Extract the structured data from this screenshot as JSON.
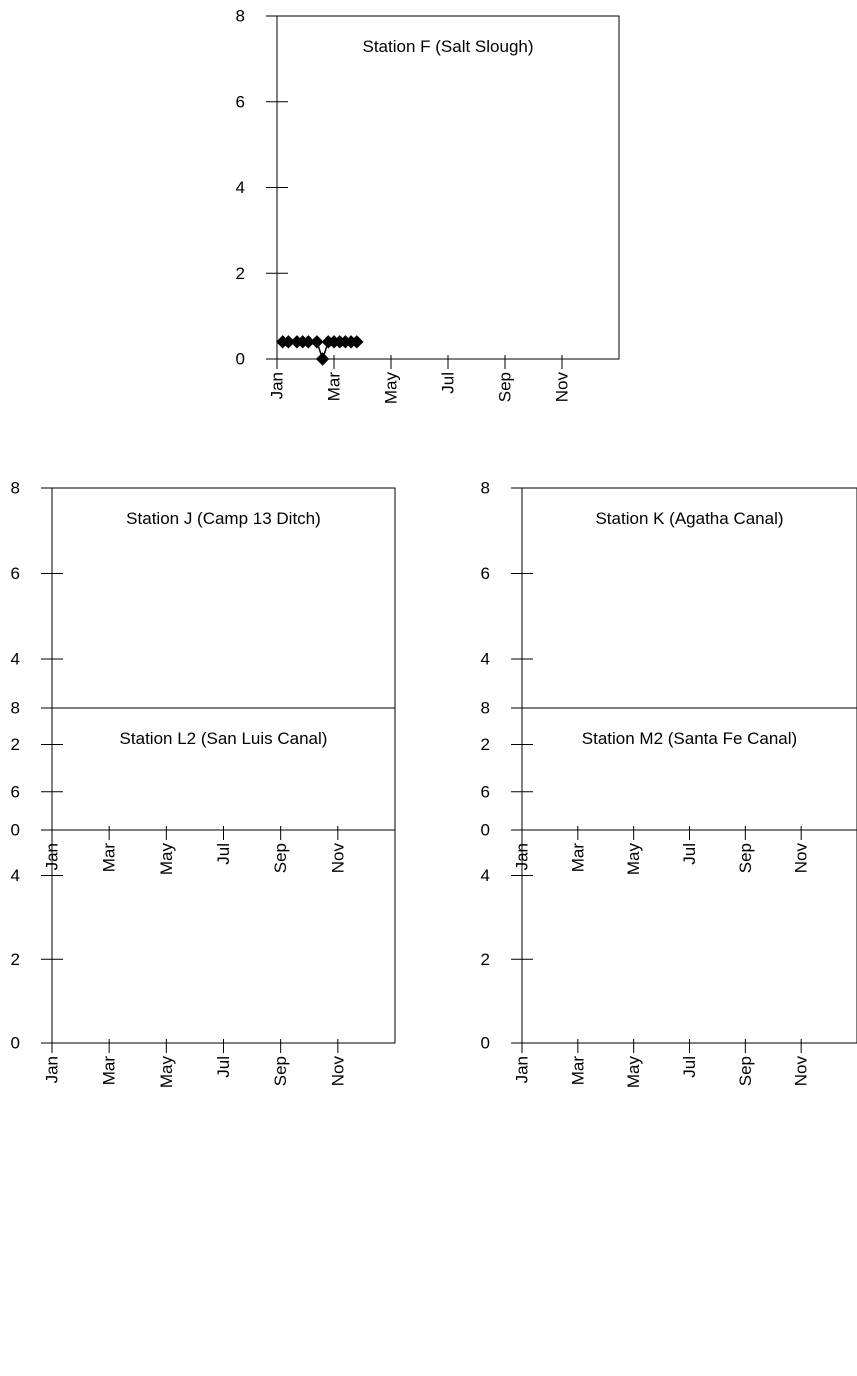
{
  "chart_data": [
    {
      "type": "line",
      "title": "Station F (Salt Slough)",
      "xlabel": "",
      "ylabel": "",
      "ylim": [
        0,
        8
      ],
      "yticks": [
        0,
        2,
        4,
        6,
        8
      ],
      "xlim": [
        1,
        13
      ],
      "xticks": [
        "Jan",
        "Mar",
        "May",
        "Jul",
        "Sep",
        "Nov"
      ],
      "grid": false,
      "marker": "diamond",
      "x": [
        1.2,
        1.4,
        1.7,
        1.9,
        2.1,
        2.4,
        2.6,
        2.8,
        3.0,
        3.2,
        3.4,
        3.6,
        3.8
      ],
      "y": [
        0.4,
        0.4,
        0.4,
        0.4,
        0.4,
        0.4,
        0.0,
        0.4,
        0.4,
        0.4,
        0.4,
        0.4,
        0.4
      ]
    },
    {
      "type": "line",
      "title": "Station J (Camp 13 Ditch)",
      "xlabel": "",
      "ylabel": "",
      "ylim": [
        0,
        8
      ],
      "yticks": [
        0,
        2,
        4,
        6,
        8
      ],
      "xlim": [
        1,
        13
      ],
      "xticks": [
        "Jan",
        "Mar",
        "May",
        "Jul",
        "Sep",
        "Nov"
      ],
      "grid": false,
      "x": [],
      "y": []
    },
    {
      "type": "line",
      "title": "Station K (Agatha Canal)",
      "xlabel": "",
      "ylabel": "",
      "ylim": [
        0,
        8
      ],
      "yticks": [
        0,
        2,
        4,
        6,
        8
      ],
      "xlim": [
        1,
        13
      ],
      "xticks": [
        "Jan",
        "Mar",
        "May",
        "Jul",
        "Sep",
        "Nov"
      ],
      "grid": false,
      "x": [],
      "y": []
    },
    {
      "type": "line",
      "title": "Station L2 (San Luis Canal)",
      "xlabel": "",
      "ylabel": "",
      "ylim": [
        0,
        8
      ],
      "yticks": [
        0,
        2,
        4,
        6,
        8
      ],
      "xlim": [
        1,
        13
      ],
      "xticks": [
        "Jan",
        "Mar",
        "May",
        "Jul",
        "Sep",
        "Nov"
      ],
      "grid": false,
      "x": [],
      "y": []
    },
    {
      "type": "line",
      "title": "Station M2 (Santa Fe Canal)",
      "xlabel": "",
      "ylabel": "",
      "ylim": [
        0,
        8
      ],
      "yticks": [
        0,
        2,
        4,
        6,
        8
      ],
      "xlim": [
        1,
        13
      ],
      "xticks": [
        "Jan",
        "Mar",
        "May",
        "Jul",
        "Sep",
        "Nov"
      ],
      "grid": false,
      "x": [],
      "y": []
    }
  ]
}
